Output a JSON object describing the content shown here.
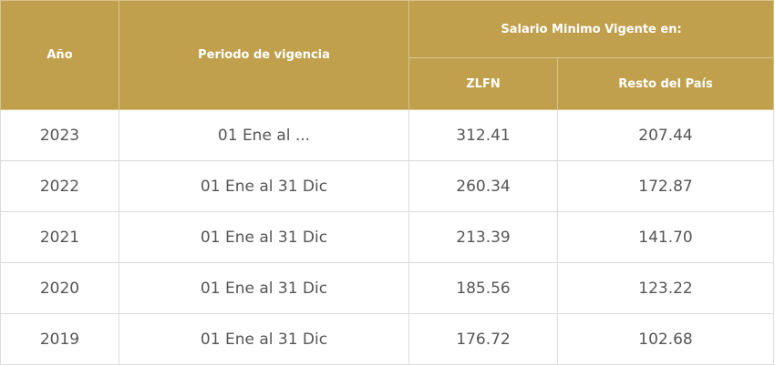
{
  "table": {
    "headers": {
      "year": "Año",
      "period": "Periodo de vigencia",
      "group": "Salario Minimo Vigente en:",
      "zlfn": "ZLFN",
      "rest": "Resto del País"
    },
    "rows": [
      [
        "2023",
        "01 Ene al ...",
        "312.41",
        "207.44"
      ],
      [
        "2022",
        "01 Ene al 31 Dic",
        "260.34",
        "172.87"
      ],
      [
        "2021",
        "01 Ene al 31 Dic",
        "213.39",
        "141.70"
      ],
      [
        "2020",
        "01 Ene al 31 Dic",
        "185.56",
        "123.22"
      ],
      [
        "2019",
        "01 Ene al 31 Dic",
        "176.72",
        "102.68"
      ]
    ]
  }
}
